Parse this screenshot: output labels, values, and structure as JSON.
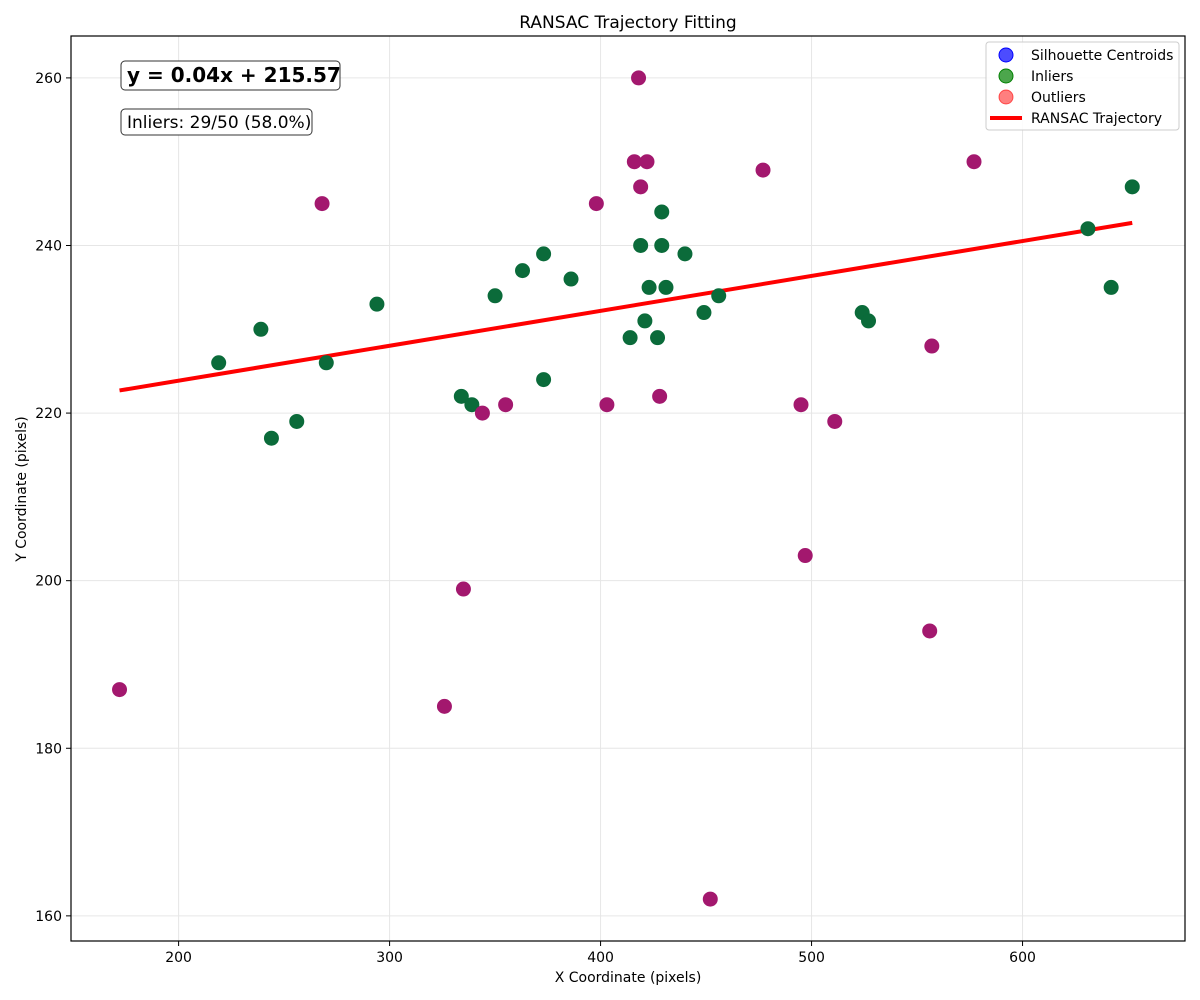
{
  "chart_data": {
    "type": "scatter",
    "title": "RANSAC Trajectory Fitting",
    "xlabel": "X Coordinate (pixels)",
    "ylabel": "Y Coordinate (pixels)",
    "xlim": [
      149,
      677
    ],
    "ylim": [
      157,
      265
    ],
    "xticks": [
      200,
      300,
      400,
      500,
      600
    ],
    "yticks": [
      160,
      180,
      200,
      220,
      240,
      260
    ],
    "grid": true,
    "legend_position": "top-right",
    "annotations": {
      "equation": "y = 0.04x + 215.57",
      "inlier_summary": "Inliers: 29/50 (58.0%)"
    },
    "legend": [
      {
        "label": "Silhouette Centroids",
        "kind": "marker",
        "color": "#0000ff"
      },
      {
        "label": "Inliers",
        "kind": "marker",
        "color": "#008000"
      },
      {
        "label": "Outliers",
        "kind": "marker",
        "color": "#ff0000"
      },
      {
        "label": "RANSAC Trajectory",
        "kind": "line",
        "color": "#ff0000"
      }
    ],
    "fit_line": {
      "x": [
        172,
        652
      ],
      "y": [
        222.7,
        242.7
      ],
      "color": "#ff0000"
    },
    "series": [
      {
        "name": "Inliers",
        "color": "#0b6b3a",
        "points": [
          [
            219,
            226
          ],
          [
            239,
            230
          ],
          [
            244,
            217
          ],
          [
            256,
            219
          ],
          [
            270,
            226
          ],
          [
            294,
            233
          ],
          [
            334,
            222
          ],
          [
            339,
            221
          ],
          [
            350,
            234
          ],
          [
            363,
            237
          ],
          [
            373,
            239
          ],
          [
            373,
            224
          ],
          [
            386,
            236
          ],
          [
            414,
            229
          ],
          [
            419,
            240
          ],
          [
            421,
            231
          ],
          [
            423,
            235
          ],
          [
            427,
            229
          ],
          [
            429,
            244
          ],
          [
            429,
            240
          ],
          [
            431,
            235
          ],
          [
            440,
            239
          ],
          [
            449,
            232
          ],
          [
            456,
            234
          ],
          [
            524,
            232
          ],
          [
            527,
            231
          ],
          [
            631,
            242
          ],
          [
            642,
            235
          ],
          [
            652,
            247
          ]
        ]
      },
      {
        "name": "Outliers",
        "color": "#a3186e",
        "points": [
          [
            172,
            187
          ],
          [
            268,
            245
          ],
          [
            326,
            185
          ],
          [
            335,
            199
          ],
          [
            344,
            220
          ],
          [
            355,
            221
          ],
          [
            398,
            245
          ],
          [
            403,
            221
          ],
          [
            416,
            250
          ],
          [
            418,
            260
          ],
          [
            419,
            247
          ],
          [
            422,
            250
          ],
          [
            428,
            222
          ],
          [
            452,
            162
          ],
          [
            477,
            249
          ],
          [
            495,
            221
          ],
          [
            497,
            203
          ],
          [
            511,
            219
          ],
          [
            556,
            194
          ],
          [
            557,
            228
          ],
          [
            577,
            250
          ]
        ]
      }
    ]
  }
}
